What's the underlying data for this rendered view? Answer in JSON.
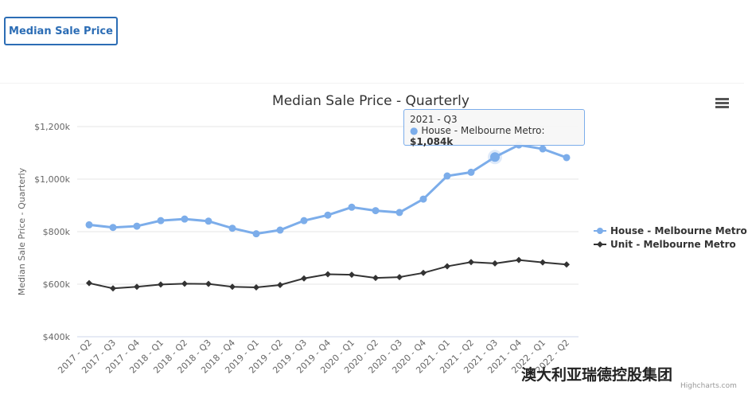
{
  "button": {
    "label": "Median Sale Price"
  },
  "chart_data": {
    "type": "line",
    "title": "Median Sale Price - Quarterly",
    "ylabel": "Median Sale Price - Quarterly",
    "xlabel": "",
    "ylim": [
      400,
      1200
    ],
    "yticks": [
      400,
      600,
      800,
      1000,
      1200
    ],
    "ytick_labels": [
      "$400k",
      "$600k",
      "$800k",
      "$1,000k",
      "$1,200k"
    ],
    "categories": [
      "2017 - Q2",
      "2017 - Q3",
      "2017 - Q4",
      "2018 - Q1",
      "2018 - Q2",
      "2018 - Q3",
      "2018 - Q4",
      "2019 - Q1",
      "2019 - Q2",
      "2019 - Q3",
      "2019 - Q4",
      "2020 - Q1",
      "2020 - Q2",
      "2020 - Q3",
      "2020 - Q4",
      "2021 - Q1",
      "2021 - Q2",
      "2021 - Q3",
      "2021 - Q4",
      "2022 - Q1",
      "2022 - Q2"
    ],
    "series": [
      {
        "name": "House - Melbourne Metro",
        "color": "#7cadea",
        "marker": "circle",
        "values": [
          826,
          816,
          821,
          842,
          848,
          840,
          813,
          792,
          806,
          842,
          863,
          893,
          880,
          873,
          924,
          1012,
          1026,
          1084,
          1130,
          1115,
          1082
        ]
      },
      {
        "name": "Unit - Melbourne Metro",
        "color": "#333333",
        "marker": "diamond",
        "values": [
          604,
          584,
          590,
          599,
          602,
          601,
          590,
          588,
          597,
          622,
          638,
          636,
          624,
          627,
          643,
          668,
          684,
          679,
          692,
          683,
          675
        ]
      }
    ],
    "legend": "right",
    "grid": true
  },
  "tooltip": {
    "title": "2021 - Q3",
    "series": "House - Melbourne Metro:",
    "value": "$1,084k"
  },
  "credit": "Highcharts.com",
  "watermark": "澳大利亚瑞德控股集团"
}
